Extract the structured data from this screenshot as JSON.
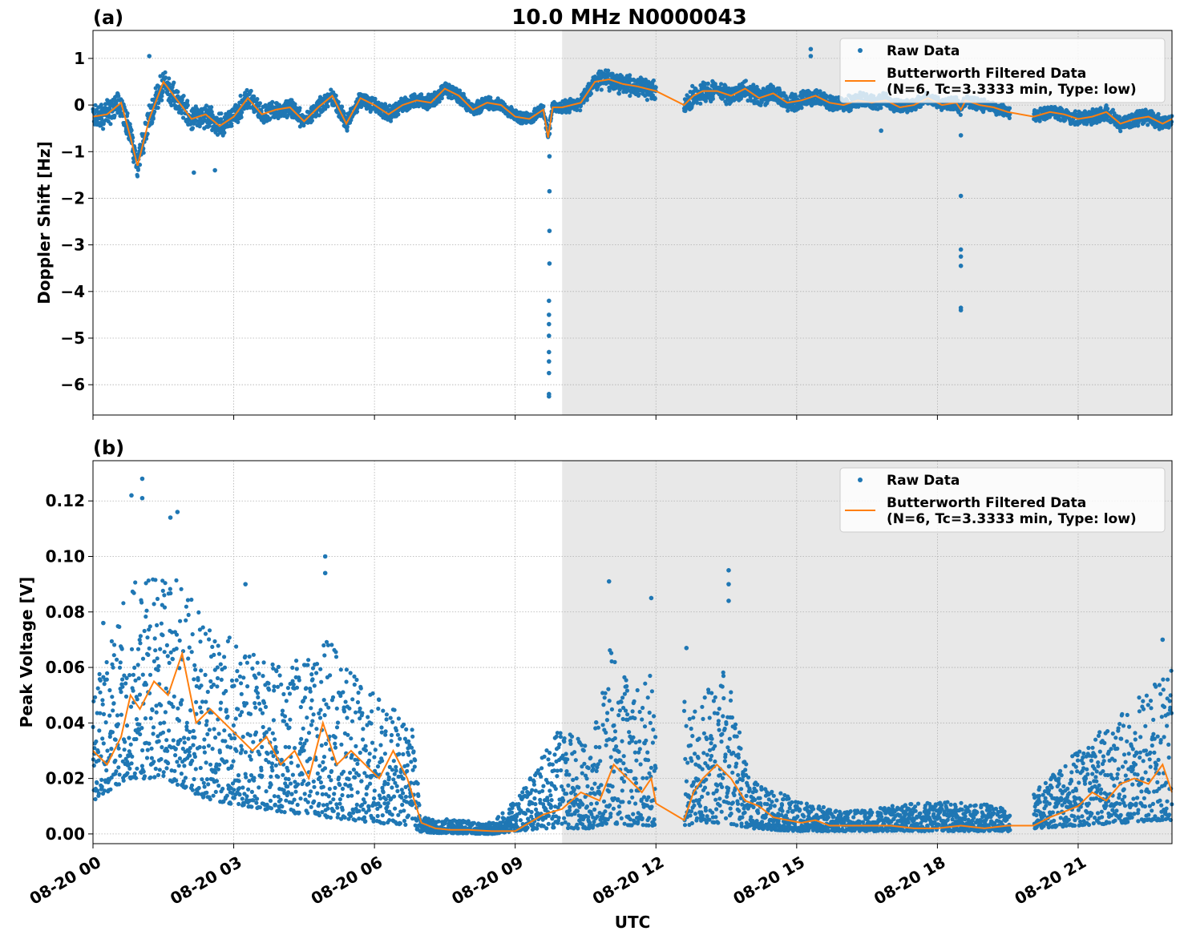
{
  "figure": {
    "title": "10.0 MHz N0000043",
    "xlabel": "UTC",
    "colors": {
      "raw": "#1f77b4",
      "filtered": "#ff7f0e",
      "shade": "#e8e8e8",
      "grid": "#b0b0b0"
    }
  },
  "chart_data": [
    {
      "type": "scatter",
      "panel": "(a)",
      "title": "10.0 MHz N0000043",
      "ylabel": "Doppler Shift [Hz]",
      "xlim_hours": [
        0,
        23
      ],
      "ylim": [
        -6.65,
        1.6
      ],
      "yticks": [
        1,
        0,
        -1,
        -2,
        -3,
        -4,
        -5,
        -6
      ],
      "yticklabels": [
        "1",
        "0",
        "−1",
        "−2",
        "−3",
        "−4",
        "−5",
        "−6"
      ],
      "shaded_region_hours": [
        10.0,
        23.0
      ],
      "grid": true,
      "legend_position": "top-right",
      "legend": {
        "raw": "Raw Data",
        "filtered_line1": "Butterworth Filtered Data",
        "filtered_line2": "(N=6, Tc=3.3333 min, Type: low)"
      },
      "gaps_hours": [
        [
          12.0,
          12.6
        ],
        [
          19.55,
          20.05
        ]
      ],
      "filtered_series": {
        "name": "Butterworth Filtered Data",
        "x_hours": [
          0,
          0.3,
          0.6,
          0.8,
          0.95,
          1.2,
          1.5,
          1.8,
          2.1,
          2.4,
          2.7,
          3.0,
          3.3,
          3.6,
          3.9,
          4.2,
          4.5,
          4.8,
          5.1,
          5.4,
          5.7,
          6.0,
          6.3,
          6.6,
          6.9,
          7.2,
          7.5,
          7.8,
          8.1,
          8.4,
          8.7,
          9.0,
          9.3,
          9.6,
          9.7,
          9.8,
          10.0,
          10.4,
          10.7,
          11.0,
          11.3,
          11.6,
          12.0,
          12.6,
          12.8,
          13.0,
          13.3,
          13.6,
          13.9,
          14.2,
          14.5,
          14.8,
          15.1,
          15.4,
          15.7,
          16.0,
          16.3,
          16.6,
          16.9,
          17.2,
          17.5,
          17.8,
          18.1,
          18.4,
          18.5,
          18.6,
          18.9,
          19.2,
          19.5,
          20.05,
          20.4,
          20.7,
          21.0,
          21.3,
          21.6,
          21.9,
          22.2,
          22.5,
          22.8,
          23.0
        ],
        "y": [
          -0.25,
          -0.2,
          0.05,
          -0.7,
          -1.3,
          -0.3,
          0.5,
          0.1,
          -0.3,
          -0.2,
          -0.45,
          -0.25,
          0.15,
          -0.2,
          -0.1,
          -0.05,
          -0.35,
          -0.05,
          0.2,
          -0.4,
          0.15,
          0.0,
          -0.2,
          0.0,
          0.1,
          0.05,
          0.35,
          0.2,
          -0.1,
          0.05,
          0.0,
          -0.25,
          -0.3,
          -0.1,
          -0.7,
          -0.05,
          -0.05,
          0.05,
          0.5,
          0.55,
          0.45,
          0.4,
          0.3,
          0.0,
          0.2,
          0.3,
          0.3,
          0.2,
          0.35,
          0.15,
          0.25,
          0.05,
          0.1,
          0.2,
          0.05,
          0.0,
          0.1,
          0.05,
          0.1,
          -0.05,
          0.0,
          0.15,
          0.0,
          0.05,
          -0.1,
          0.1,
          0.0,
          -0.05,
          -0.15,
          -0.25,
          -0.15,
          -0.2,
          -0.3,
          -0.25,
          -0.15,
          -0.4,
          -0.3,
          -0.25,
          -0.4,
          -0.3
        ]
      },
      "raw_series": {
        "name": "Raw Data",
        "band_halfwidth": [
          [
            0,
            0.3
          ],
          [
            0.95,
            0.35
          ],
          [
            5,
            0.2
          ],
          [
            9,
            0.15
          ],
          [
            10,
            0.15
          ],
          [
            11,
            0.25
          ],
          [
            13,
            0.25
          ],
          [
            18,
            0.15
          ],
          [
            23,
            0.2
          ]
        ],
        "outliers": [
          {
            "x_hours": 9.72,
            "y": -6.25
          },
          {
            "x_hours": 9.72,
            "y": -6.2
          },
          {
            "x_hours": 9.72,
            "y": -5.75
          },
          {
            "x_hours": 9.72,
            "y": -5.5
          },
          {
            "x_hours": 9.72,
            "y": -5.3
          },
          {
            "x_hours": 9.72,
            "y": -4.95
          },
          {
            "x_hours": 9.72,
            "y": -4.7
          },
          {
            "x_hours": 9.72,
            "y": -4.5
          },
          {
            "x_hours": 9.72,
            "y": -4.2
          },
          {
            "x_hours": 9.73,
            "y": -3.4
          },
          {
            "x_hours": 9.73,
            "y": -2.7
          },
          {
            "x_hours": 9.73,
            "y": -1.85
          },
          {
            "x_hours": 9.73,
            "y": -1.1
          },
          {
            "x_hours": 18.5,
            "y": -4.4
          },
          {
            "x_hours": 18.5,
            "y": -4.35
          },
          {
            "x_hours": 18.5,
            "y": -3.45
          },
          {
            "x_hours": 18.5,
            "y": -3.25
          },
          {
            "x_hours": 18.5,
            "y": -3.1
          },
          {
            "x_hours": 18.5,
            "y": -1.95
          },
          {
            "x_hours": 18.5,
            "y": -0.65
          },
          {
            "x_hours": 15.3,
            "y": 1.2
          },
          {
            "x_hours": 15.3,
            "y": 1.05
          },
          {
            "x_hours": 1.2,
            "y": 1.05
          },
          {
            "x_hours": 2.15,
            "y": -1.45
          },
          {
            "x_hours": 2.6,
            "y": -1.4
          },
          {
            "x_hours": 16.8,
            "y": -0.55
          }
        ]
      }
    },
    {
      "type": "scatter",
      "panel": "(b)",
      "ylabel": "Peak Voltage [V]",
      "xlabel": "UTC",
      "xlim_hours": [
        0,
        23
      ],
      "xticks_hours": [
        0,
        3,
        6,
        9,
        12,
        15,
        18,
        21
      ],
      "xticklabels": [
        "08-20 00",
        "08-20 03",
        "08-20 06",
        "08-20 09",
        "08-20 12",
        "08-20 15",
        "08-20 18",
        "08-20 21"
      ],
      "ylim": [
        -0.0035,
        0.1345
      ],
      "yticks": [
        0.0,
        0.02,
        0.04,
        0.06,
        0.08,
        0.1,
        0.12
      ],
      "yticklabels": [
        "0.00",
        "0.02",
        "0.04",
        "0.06",
        "0.08",
        "0.10",
        "0.12"
      ],
      "shaded_region_hours": [
        10.0,
        23.0
      ],
      "grid": true,
      "legend_position": "top-right",
      "legend": {
        "raw": "Raw Data",
        "filtered_line1": "Butterworth Filtered Data",
        "filtered_line2": "(N=6, Tc=3.3333 min, Type: low)"
      },
      "gaps_hours": [
        [
          12.0,
          12.6
        ],
        [
          19.55,
          20.05
        ]
      ],
      "filtered_series": {
        "name": "Butterworth Filtered Data",
        "x_hours": [
          0,
          0.3,
          0.6,
          0.8,
          1.0,
          1.3,
          1.6,
          1.9,
          2.2,
          2.5,
          2.8,
          3.1,
          3.4,
          3.7,
          4.0,
          4.3,
          4.6,
          4.9,
          5.2,
          5.5,
          5.8,
          6.1,
          6.4,
          6.7,
          7.0,
          7.3,
          7.6,
          8.0,
          8.5,
          9.0,
          9.3,
          9.6,
          10.0,
          10.4,
          10.8,
          11.1,
          11.4,
          11.7,
          11.9,
          12.0,
          12.6,
          12.8,
          13.0,
          13.3,
          13.6,
          13.9,
          14.2,
          14.5,
          14.8,
          15.1,
          15.4,
          15.7,
          16.0,
          16.5,
          17.0,
          17.5,
          18.0,
          18.5,
          19.0,
          19.5,
          20.05,
          20.4,
          20.7,
          21.0,
          21.3,
          21.6,
          21.9,
          22.2,
          22.5,
          22.8,
          23.0
        ],
        "y": [
          0.03,
          0.025,
          0.035,
          0.05,
          0.045,
          0.055,
          0.05,
          0.065,
          0.04,
          0.045,
          0.04,
          0.035,
          0.03,
          0.035,
          0.025,
          0.03,
          0.02,
          0.04,
          0.025,
          0.03,
          0.025,
          0.02,
          0.03,
          0.02,
          0.004,
          0.002,
          0.0015,
          0.0015,
          0.001,
          0.001,
          0.004,
          0.007,
          0.009,
          0.015,
          0.012,
          0.025,
          0.02,
          0.015,
          0.02,
          0.011,
          0.005,
          0.015,
          0.02,
          0.025,
          0.02,
          0.012,
          0.01,
          0.006,
          0.005,
          0.004,
          0.005,
          0.003,
          0.003,
          0.003,
          0.003,
          0.002,
          0.002,
          0.003,
          0.002,
          0.003,
          0.003,
          0.006,
          0.008,
          0.01,
          0.015,
          0.012,
          0.018,
          0.02,
          0.018,
          0.025,
          0.015
        ]
      },
      "raw_series": {
        "name": "Raw Data",
        "band": [
          [
            0,
            0.012,
            0.055
          ],
          [
            0.8,
            0.02,
            0.09
          ],
          [
            1.5,
            0.02,
            0.1
          ],
          [
            2.5,
            0.012,
            0.075
          ],
          [
            4.0,
            0.008,
            0.06
          ],
          [
            5.0,
            0.006,
            0.07
          ],
          [
            6.0,
            0.004,
            0.05
          ],
          [
            6.8,
            0.003,
            0.04
          ],
          [
            7.0,
            0.0005,
            0.006
          ],
          [
            8.5,
            0.0,
            0.004
          ],
          [
            9.0,
            0.001,
            0.012
          ],
          [
            9.6,
            0.002,
            0.03
          ],
          [
            10.0,
            0.002,
            0.04
          ],
          [
            10.6,
            0.002,
            0.03
          ],
          [
            11.0,
            0.004,
            0.07
          ],
          [
            11.5,
            0.003,
            0.05
          ],
          [
            12.0,
            0.003,
            0.06
          ],
          [
            12.6,
            0.003,
            0.05
          ],
          [
            13.0,
            0.004,
            0.05
          ],
          [
            13.5,
            0.004,
            0.06
          ],
          [
            14.0,
            0.002,
            0.02
          ],
          [
            15.0,
            0.001,
            0.012
          ],
          [
            16.0,
            0.001,
            0.008
          ],
          [
            18.0,
            0.001,
            0.012
          ],
          [
            19.5,
            0.001,
            0.01
          ],
          [
            20.05,
            0.002,
            0.015
          ],
          [
            21.0,
            0.003,
            0.03
          ],
          [
            22.0,
            0.004,
            0.045
          ],
          [
            23.0,
            0.005,
            0.06
          ]
        ],
        "outliers": [
          {
            "x_hours": 1.05,
            "y": 0.128
          },
          {
            "x_hours": 0.82,
            "y": 0.122
          },
          {
            "x_hours": 1.05,
            "y": 0.121
          },
          {
            "x_hours": 1.8,
            "y": 0.116
          },
          {
            "x_hours": 1.65,
            "y": 0.114
          },
          {
            "x_hours": 4.95,
            "y": 0.1
          },
          {
            "x_hours": 4.95,
            "y": 0.094
          },
          {
            "x_hours": 11.0,
            "y": 0.091
          },
          {
            "x_hours": 11.9,
            "y": 0.085
          },
          {
            "x_hours": 13.55,
            "y": 0.095
          },
          {
            "x_hours": 13.55,
            "y": 0.09
          },
          {
            "x_hours": 13.55,
            "y": 0.084
          },
          {
            "x_hours": 12.65,
            "y": 0.067
          },
          {
            "x_hours": 22.8,
            "y": 0.07
          },
          {
            "x_hours": 0.22,
            "y": 0.076
          },
          {
            "x_hours": 3.25,
            "y": 0.09
          }
        ]
      }
    }
  ]
}
